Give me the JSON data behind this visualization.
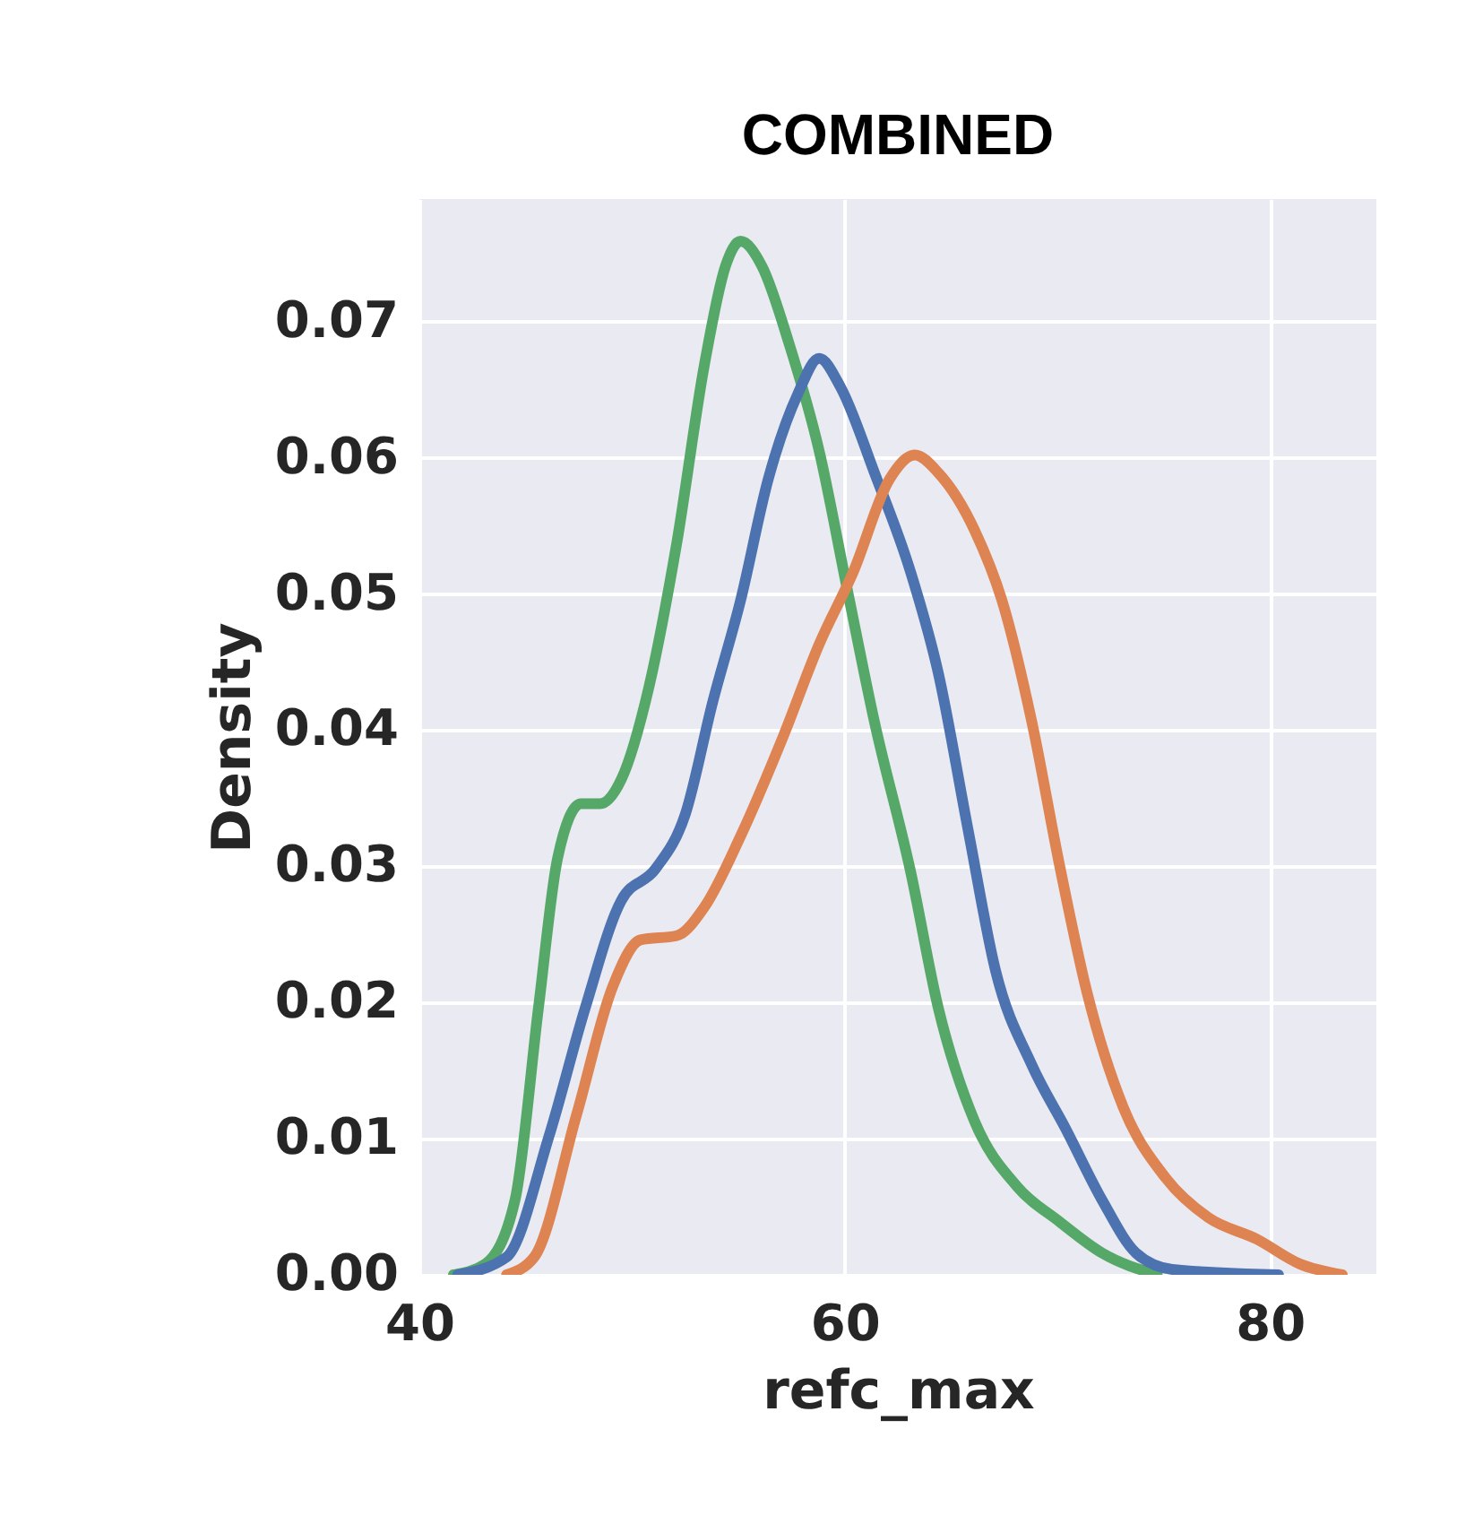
{
  "chart_data": {
    "type": "line",
    "title": "COMBINED",
    "xlabel": "refc_max",
    "ylabel": "Density",
    "xlim": [
      40,
      85
    ],
    "xticks": [
      40,
      60,
      80
    ],
    "ylim": [
      0,
      0.079
    ],
    "yticks": [
      {
        "value": 0,
        "label": "0.00"
      },
      0.01,
      0.02,
      0.03,
      0.04,
      0.05,
      0.06,
      0.07
    ],
    "grid": true,
    "marker": "none",
    "line_style": "solid",
    "series": [
      {
        "color": "#55a868",
        "x": [
          41.6,
          43.1,
          44.5,
          45.6,
          46.5,
          47.6,
          48.5,
          49.5,
          50.8,
          52.1,
          53.4,
          54.4,
          55.1,
          56.1,
          57.4,
          58.8,
          60.1,
          61.4,
          63.1,
          64.4,
          66.1,
          68.1,
          70.1,
          72.1,
          74.7
        ],
        "values": [
          0,
          0.0008,
          0.0055,
          0.0196,
          0.0306,
          0.0346,
          0.0346,
          0.0364,
          0.0432,
          0.0537,
          0.0668,
          0.0741,
          0.0759,
          0.0741,
          0.0683,
          0.0605,
          0.0505,
          0.0406,
          0.0296,
          0.0196,
          0.0113,
          0.0065,
          0.0039,
          0.0016,
          0
        ]
      },
      {
        "color": "#4c72b0",
        "x": [
          41.8,
          44.1,
          46.1,
          47.8,
          49.5,
          51.1,
          52.5,
          53.8,
          55.1,
          56.4,
          57.8,
          58.8,
          59.8,
          61.4,
          63.1,
          64.4,
          65.8,
          67.1,
          68.8,
          70.4,
          72.1,
          73.7,
          75.4,
          80.4
        ],
        "values": [
          0,
          0.0013,
          0.0102,
          0.0196,
          0.0275,
          0.0298,
          0.0338,
          0.0421,
          0.0495,
          0.0584,
          0.0647,
          0.0673,
          0.0652,
          0.0589,
          0.0516,
          0.0442,
          0.0327,
          0.0223,
          0.0154,
          0.0107,
          0.0055,
          0.0016,
          0.0004,
          0
        ]
      },
      {
        "color": "#dd8452",
        "x": [
          44.1,
          45.4,
          47.4,
          49.1,
          50.4,
          52.1,
          53.4,
          55.1,
          57.1,
          58.8,
          60.4,
          62.1,
          63.3,
          64.4,
          66.1,
          67.4,
          68.8,
          70.1,
          71.4,
          73.1,
          75.1,
          77.1,
          79.4,
          81.4,
          83.4
        ],
        "values": [
          0,
          0.0013,
          0.0118,
          0.0212,
          0.0246,
          0.0249,
          0.027,
          0.0322,
          0.0395,
          0.0463,
          0.0516,
          0.0584,
          0.0602,
          0.0589,
          0.0547,
          0.0495,
          0.0406,
          0.0301,
          0.0207,
          0.0123,
          0.0071,
          0.0042,
          0.0026,
          0.0008,
          0
        ]
      }
    ]
  }
}
